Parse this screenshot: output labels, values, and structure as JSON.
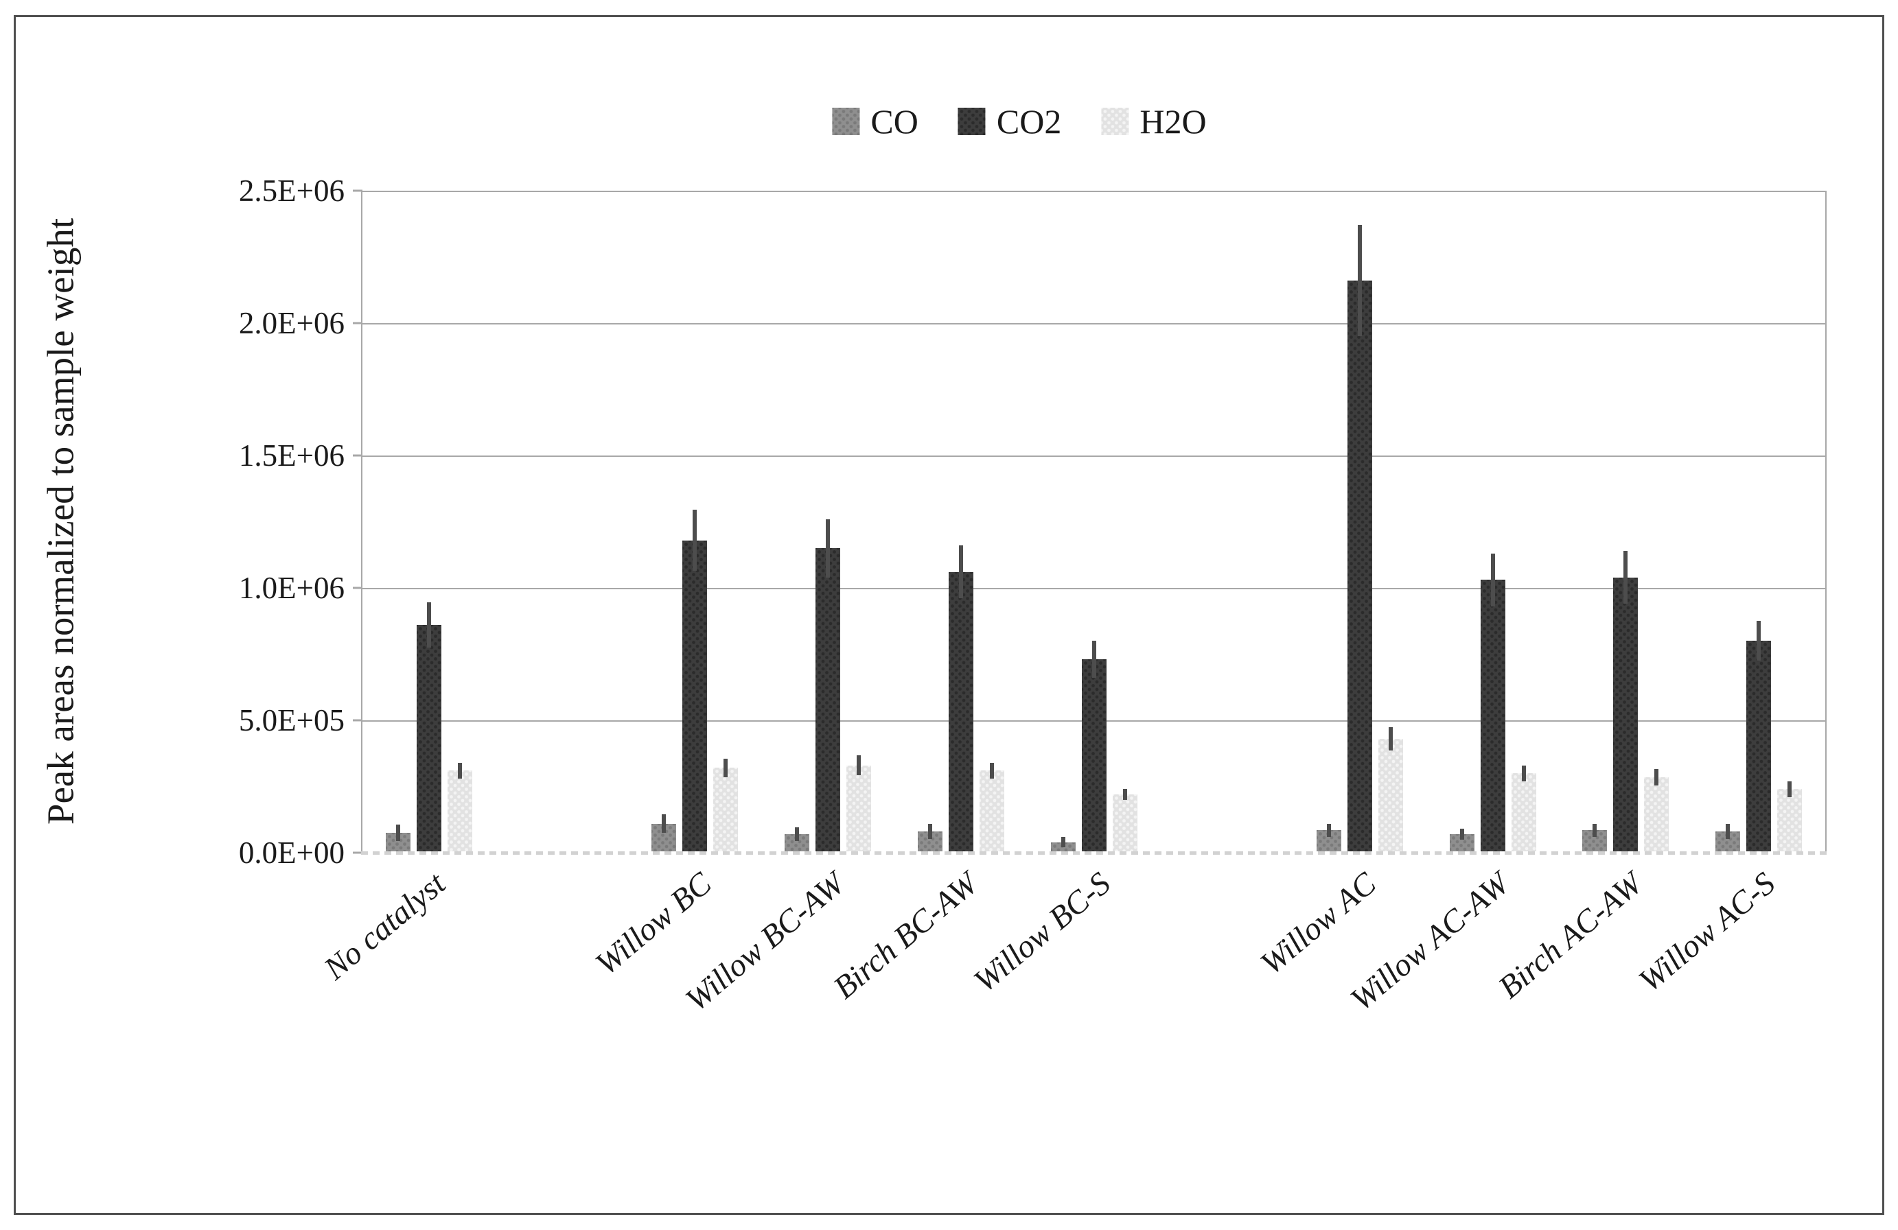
{
  "figure": {
    "background": "#ffffff",
    "border_color": "#4f4f4f"
  },
  "chart_data": {
    "type": "bar",
    "title": "",
    "ylabel": "Peak areas normalized to sample weight",
    "xlabel": "",
    "ylim": [
      0,
      2500000
    ],
    "ytick_step": 500000,
    "ytick_labels": [
      "0.0E+00",
      "5.0E+05",
      "1.0E+06",
      "1.5E+06",
      "2.0E+06",
      "2.5E+06"
    ],
    "grid": "horizontal",
    "legend_position": "top-center",
    "categories": [
      "No catalyst",
      "Willow BC",
      "Willow BC-AW",
      "Birch BC-AW",
      "Willow BC-S",
      "Willow AC",
      "Willow AC-AW",
      "Birch AC-AW",
      "Willow AC-S"
    ],
    "category_slots": [
      0,
      2,
      3,
      4,
      5,
      7,
      8,
      9,
      10
    ],
    "total_slots": 11,
    "error_bar_color": "#4d4d4d",
    "gridline_color": "#a8a8a8",
    "series": [
      {
        "name": "CO",
        "color": "#8f8f8f",
        "dot_color": "#7a7a7a",
        "values": [
          75000,
          110000,
          70000,
          80000,
          40000,
          85000,
          70000,
          85000,
          80000
        ],
        "errors": [
          30000,
          35000,
          25000,
          28000,
          20000,
          25000,
          20000,
          25000,
          28000
        ]
      },
      {
        "name": "CO2",
        "color": "#3d3d3d",
        "dot_color": "#2b2b2b",
        "values": [
          860000,
          1180000,
          1150000,
          1060000,
          730000,
          2160000,
          1030000,
          1040000,
          800000
        ],
        "errors": [
          85000,
          115000,
          110000,
          100000,
          70000,
          210000,
          100000,
          100000,
          75000
        ]
      },
      {
        "name": "H2O",
        "color": "#e2e2e2",
        "dot_color": "#f4f4f4",
        "values": [
          310000,
          320000,
          330000,
          310000,
          220000,
          430000,
          300000,
          285000,
          240000
        ],
        "errors": [
          30000,
          35000,
          38000,
          30000,
          20000,
          45000,
          30000,
          30000,
          30000
        ]
      }
    ]
  }
}
